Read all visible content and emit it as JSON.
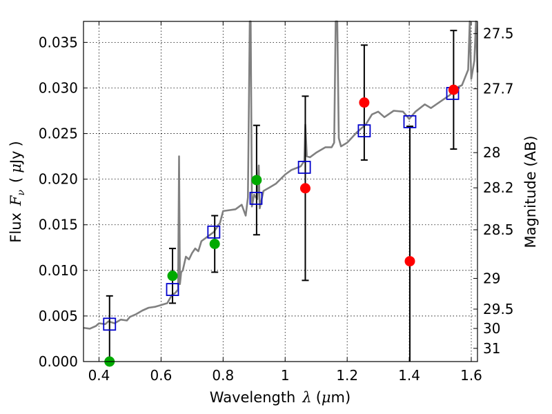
{
  "chart_data": {
    "type": "scatter",
    "xlabel": {
      "prefix": "Wavelength",
      "symbol": "λ",
      "unit_open": "(",
      "unit_mu": "μ",
      "unit_rest": "m)"
    },
    "ylabel": {
      "prefix": "Flux",
      "symbol_main": "F",
      "symbol_sub": "ν",
      "unit_open": "(",
      "unit_mu": "μ",
      "unit_rest": "Jy",
      "unit_close": ")"
    },
    "y2label": "Magnitude (AB)",
    "xlim": [
      0.35,
      1.62
    ],
    "ylim": [
      0.0,
      0.0373
    ],
    "grid": true,
    "x_ticks": [
      {
        "v": 0.4,
        "label": "0.4"
      },
      {
        "v": 0.6,
        "label": "0.6"
      },
      {
        "v": 0.8,
        "label": "0.8"
      },
      {
        "v": 1.0,
        "label": "1"
      },
      {
        "v": 1.2,
        "label": "1.2"
      },
      {
        "v": 1.4,
        "label": "1.4"
      },
      {
        "v": 1.6,
        "label": "1.6"
      }
    ],
    "y_ticks": [
      {
        "v": 0.0,
        "label": "0.000"
      },
      {
        "v": 0.005,
        "label": "0.005"
      },
      {
        "v": 0.01,
        "label": "0.010"
      },
      {
        "v": 0.015,
        "label": "0.015"
      },
      {
        "v": 0.02,
        "label": "0.020"
      },
      {
        "v": 0.025,
        "label": "0.025"
      },
      {
        "v": 0.03,
        "label": "0.030"
      },
      {
        "v": 0.035,
        "label": "0.035"
      }
    ],
    "mag_ticks": [
      {
        "flux": 0.03596,
        "label": "27.5"
      },
      {
        "flux": 0.02991,
        "label": "27.7"
      },
      {
        "flux": 0.02291,
        "label": "28"
      },
      {
        "flux": 0.01905,
        "label": "28.2"
      },
      {
        "flux": 0.01445,
        "label": "28.5"
      },
      {
        "flux": 0.00912,
        "label": "29"
      },
      {
        "flux": 0.00575,
        "label": "29.5"
      },
      {
        "flux": 0.00363,
        "label": "30"
      },
      {
        "flux": 0.00145,
        "label": "31"
      }
    ],
    "sed_model": {
      "color": "#808080",
      "points": [
        [
          0.35,
          0.0037
        ],
        [
          0.37,
          0.0036
        ],
        [
          0.39,
          0.0039
        ],
        [
          0.4,
          0.0042
        ],
        [
          0.42,
          0.0041
        ],
        [
          0.43,
          0.0044
        ],
        [
          0.45,
          0.0042
        ],
        [
          0.47,
          0.0046
        ],
        [
          0.49,
          0.0045
        ],
        [
          0.5,
          0.0049
        ],
        [
          0.52,
          0.0052
        ],
        [
          0.54,
          0.0056
        ],
        [
          0.56,
          0.0059
        ],
        [
          0.58,
          0.006
        ],
        [
          0.6,
          0.0062
        ],
        [
          0.62,
          0.0064
        ],
        [
          0.635,
          0.0073
        ],
        [
          0.645,
          0.0075
        ],
        [
          0.655,
          0.0079
        ],
        [
          0.658,
          0.0225
        ],
        [
          0.661,
          0.0085
        ],
        [
          0.665,
          0.0098
        ],
        [
          0.67,
          0.01
        ],
        [
          0.68,
          0.0115
        ],
        [
          0.69,
          0.0112
        ],
        [
          0.7,
          0.0119
        ],
        [
          0.71,
          0.0124
        ],
        [
          0.72,
          0.0121
        ],
        [
          0.73,
          0.0132
        ],
        [
          0.75,
          0.0137
        ],
        [
          0.77,
          0.0142
        ],
        [
          0.79,
          0.0152
        ],
        [
          0.8,
          0.0165
        ],
        [
          0.82,
          0.0166
        ],
        [
          0.84,
          0.0167
        ],
        [
          0.86,
          0.0172
        ],
        [
          0.873,
          0.016
        ],
        [
          0.88,
          0.018
        ],
        [
          0.886,
          0.0373
        ],
        [
          0.889,
          0.0373
        ],
        [
          0.893,
          0.017
        ],
        [
          0.9,
          0.0183
        ],
        [
          0.91,
          0.0178
        ],
        [
          0.915,
          0.0215
        ],
        [
          0.918,
          0.0168
        ],
        [
          0.93,
          0.0187
        ],
        [
          0.95,
          0.0191
        ],
        [
          0.97,
          0.0195
        ],
        [
          1.0,
          0.0205
        ],
        [
          1.02,
          0.021
        ],
        [
          1.05,
          0.0214
        ],
        [
          1.062,
          0.022
        ],
        [
          1.065,
          0.026
        ],
        [
          1.07,
          0.0225
        ],
        [
          1.08,
          0.0224
        ],
        [
          1.1,
          0.0229
        ],
        [
          1.13,
          0.0235
        ],
        [
          1.15,
          0.0235
        ],
        [
          1.158,
          0.024
        ],
        [
          1.163,
          0.0373
        ],
        [
          1.168,
          0.0373
        ],
        [
          1.173,
          0.0245
        ],
        [
          1.18,
          0.0236
        ],
        [
          1.2,
          0.024
        ],
        [
          1.23,
          0.0251
        ],
        [
          1.26,
          0.026
        ],
        [
          1.28,
          0.0271
        ],
        [
          1.3,
          0.0274
        ],
        [
          1.32,
          0.0268
        ],
        [
          1.35,
          0.0275
        ],
        [
          1.38,
          0.0274
        ],
        [
          1.4,
          0.0266
        ],
        [
          1.42,
          0.0274
        ],
        [
          1.45,
          0.0282
        ],
        [
          1.47,
          0.0278
        ],
        [
          1.5,
          0.0285
        ],
        [
          1.53,
          0.0292
        ],
        [
          1.55,
          0.03
        ],
        [
          1.57,
          0.0303
        ],
        [
          1.59,
          0.032
        ],
        [
          1.595,
          0.0373
        ],
        [
          1.6,
          0.031
        ],
        [
          1.61,
          0.033
        ],
        [
          1.615,
          0.0373
        ],
        [
          1.62,
          0.0317
        ]
      ]
    },
    "model_photometry": {
      "marker": "open-square",
      "color": "#0000cc",
      "points": [
        [
          0.434,
          0.0041
        ],
        [
          0.637,
          0.0079
        ],
        [
          0.77,
          0.0142
        ],
        [
          0.906,
          0.0179
        ],
        [
          1.062,
          0.0213
        ],
        [
          1.255,
          0.0253
        ],
        [
          1.402,
          0.0263
        ],
        [
          1.54,
          0.0294
        ]
      ]
    },
    "observed_hst_optical": {
      "marker": "filled-circle",
      "color": "#00aa00",
      "points": [
        {
          "x": 0.434,
          "y": 0.0,
          "err": 0.0072
        },
        {
          "x": 0.637,
          "y": 0.0094,
          "err": 0.003
        },
        {
          "x": 0.773,
          "y": 0.0129,
          "err": 0.0031
        },
        {
          "x": 0.908,
          "y": 0.0199,
          "err": 0.006
        }
      ]
    },
    "observed_hst_ir": {
      "marker": "filled-circle",
      "color": "#ff0000",
      "points": [
        {
          "x": 1.065,
          "y": 0.019,
          "err": 0.0101
        },
        {
          "x": 1.255,
          "y": 0.0284,
          "err": 0.0063
        },
        {
          "x": 1.402,
          "y": 0.011,
          "err": 0.0148
        },
        {
          "x": 1.543,
          "y": 0.0298,
          "err": 0.0065
        }
      ]
    }
  }
}
